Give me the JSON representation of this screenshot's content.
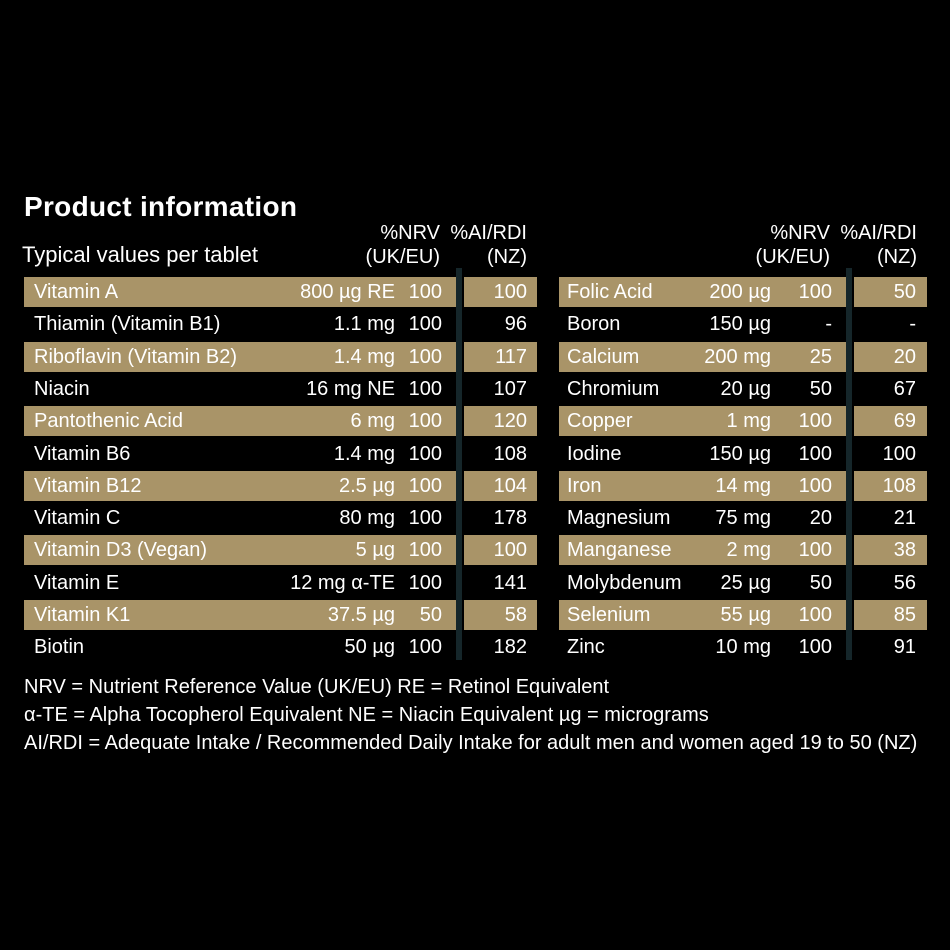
{
  "title": "Product information",
  "subtitle": "Typical values per tablet",
  "headers": {
    "nrv": "%NRV",
    "nrv_region": "(UK/EU)",
    "rdi": "%AI/RDI",
    "rdi_region": "(NZ)"
  },
  "left_rows": [
    {
      "name": "Vitamin A",
      "amount": "800 µg RE",
      "nrv": "100",
      "rdi": "100"
    },
    {
      "name": "Thiamin (Vitamin B1)",
      "amount": "1.1 mg",
      "nrv": "100",
      "rdi": "96"
    },
    {
      "name": "Riboflavin (Vitamin B2)",
      "amount": "1.4 mg",
      "nrv": "100",
      "rdi": "117"
    },
    {
      "name": "Niacin",
      "amount": "16 mg NE",
      "nrv": "100",
      "rdi": "107"
    },
    {
      "name": "Pantothenic Acid",
      "amount": "6 mg",
      "nrv": "100",
      "rdi": "120"
    },
    {
      "name": "Vitamin B6",
      "amount": "1.4 mg",
      "nrv": "100",
      "rdi": "108"
    },
    {
      "name": "Vitamin B12",
      "amount": "2.5 µg",
      "nrv": "100",
      "rdi": "104"
    },
    {
      "name": "Vitamin C",
      "amount": "80 mg",
      "nrv": "100",
      "rdi": "178"
    },
    {
      "name": "Vitamin D3 (Vegan)",
      "amount": "5 µg",
      "nrv": "100",
      "rdi": "100"
    },
    {
      "name": "Vitamin E",
      "amount": "12 mg α-TE",
      "nrv": "100",
      "rdi": "141"
    },
    {
      "name": "Vitamin K1",
      "amount": "37.5 µg",
      "nrv": "50",
      "rdi": "58"
    },
    {
      "name": "Biotin",
      "amount": "50 µg",
      "nrv": "100",
      "rdi": "182"
    }
  ],
  "right_rows": [
    {
      "name": "Folic Acid",
      "amount": "200 µg",
      "nrv": "100",
      "rdi": "50"
    },
    {
      "name": "Boron",
      "amount": "150 µg",
      "nrv": "-",
      "rdi": "-"
    },
    {
      "name": "Calcium",
      "amount": "200 mg",
      "nrv": "25",
      "rdi": "20"
    },
    {
      "name": "Chromium",
      "amount": "20 µg",
      "nrv": "50",
      "rdi": "67"
    },
    {
      "name": "Copper",
      "amount": "1 mg",
      "nrv": "100",
      "rdi": "69"
    },
    {
      "name": "Iodine",
      "amount": "150 µg",
      "nrv": "100",
      "rdi": "100"
    },
    {
      "name": "Iron",
      "amount": "14 mg",
      "nrv": "100",
      "rdi": "108"
    },
    {
      "name": "Magnesium",
      "amount": "75 mg",
      "nrv": "20",
      "rdi": "21"
    },
    {
      "name": "Manganese",
      "amount": "2 mg",
      "nrv": "100",
      "rdi": "38"
    },
    {
      "name": "Molybdenum",
      "amount": "25 µg",
      "nrv": "50",
      "rdi": "56"
    },
    {
      "name": "Selenium",
      "amount": "55 µg",
      "nrv": "100",
      "rdi": "85"
    },
    {
      "name": "Zinc",
      "amount": "10 mg",
      "nrv": "100",
      "rdi": "91"
    }
  ],
  "footnotes": [
    "NRV = Nutrient Reference Value (UK/EU)   RE = Retinol Equivalent",
    "α-TE = Alpha Tocopherol Equivalent   NE = Niacin Equivalent   µg = micrograms",
    "AI/RDI = Adequate Intake / Recommended Daily Intake for adult men and women aged 19 to 50 (NZ)"
  ],
  "colors": {
    "background": "#000000",
    "band": "#a99468",
    "divider": "#15262a",
    "text": "#ffffff"
  }
}
